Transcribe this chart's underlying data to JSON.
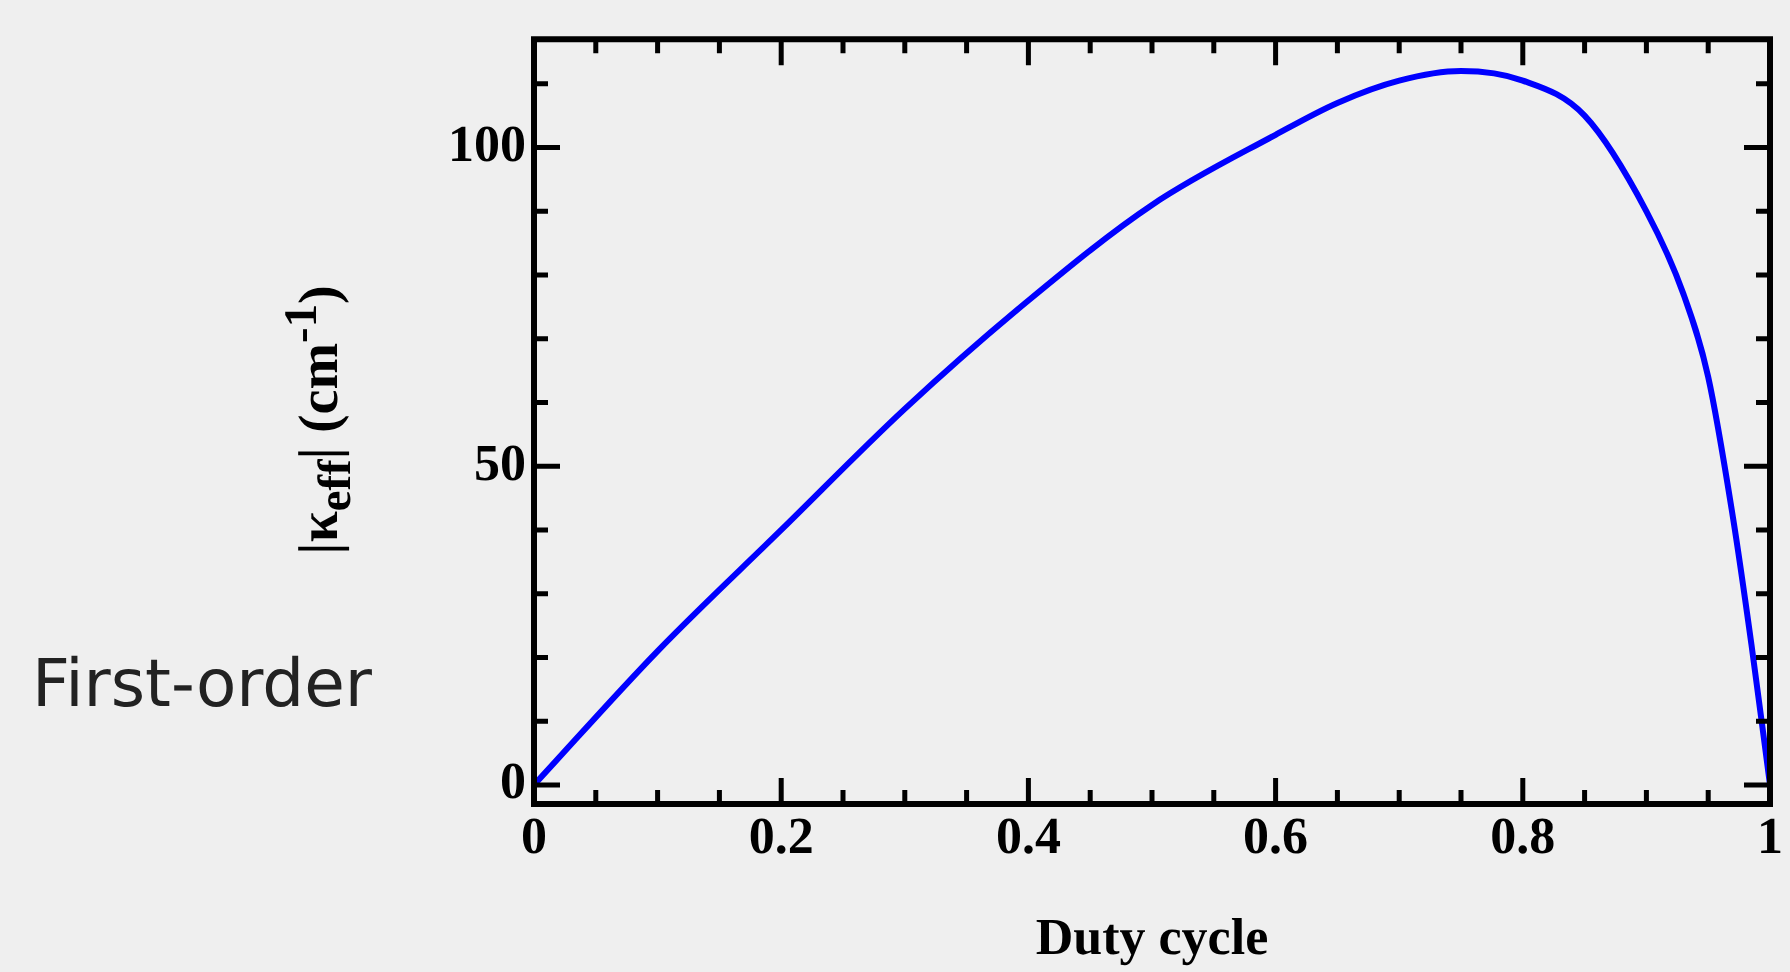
{
  "chart_data": {
    "type": "line",
    "xlabel": "Duty cycle",
    "ylabel": "|κ$_{eff}$| (cm$^{-1}$)",
    "annotations": [
      "First-order"
    ],
    "x": [
      0,
      0.1,
      0.2,
      0.3,
      0.4,
      0.5,
      0.6,
      0.65,
      0.7,
      0.75,
      0.8,
      0.85,
      0.9,
      0.93,
      0.95,
      0.97,
      0.985,
      1
    ],
    "series": [
      {
        "color": "#0000ff",
        "values": [
          0,
          21,
          40,
          59,
          76,
          91,
          102,
          107,
          110.5,
          112,
          110.5,
          105,
          90,
          77,
          64,
          42,
          22,
          0
        ]
      }
    ],
    "xlim": [
      0,
      1
    ],
    "ylim": [
      -3,
      117
    ],
    "xticks": [
      0,
      {
        "value": 0.05,
        "label": null
      },
      {
        "value": 0.1,
        "label": null
      },
      {
        "value": 0.15,
        "label": null
      },
      0.2,
      {
        "value": 0.25,
        "label": null
      },
      {
        "value": 0.3,
        "label": null
      },
      {
        "value": 0.35,
        "label": null
      },
      0.4,
      {
        "value": 0.45,
        "label": null
      },
      {
        "value": 0.5,
        "label": null
      },
      {
        "value": 0.55,
        "label": null
      },
      0.6,
      {
        "value": 0.65,
        "label": null
      },
      {
        "value": 0.7,
        "label": null
      },
      {
        "value": 0.75,
        "label": null
      },
      0.8,
      {
        "value": 0.85,
        "label": null
      },
      {
        "value": 0.9,
        "label": null
      },
      {
        "value": 0.95,
        "label": null
      },
      1
    ],
    "yticks": [
      0,
      {
        "value": 10,
        "label": null
      },
      {
        "value": 20,
        "label": null
      },
      {
        "value": 30,
        "label": null
      },
      {
        "value": 40,
        "label": null
      },
      50,
      {
        "value": 60,
        "label": null
      },
      {
        "value": 70,
        "label": null
      },
      {
        "value": 80,
        "label": null
      },
      {
        "value": 90,
        "label": null
      },
      100,
      {
        "value": 110,
        "label": null
      }
    ],
    "grid": false,
    "legend": false,
    "marker": "none",
    "line_style": "solid"
  }
}
